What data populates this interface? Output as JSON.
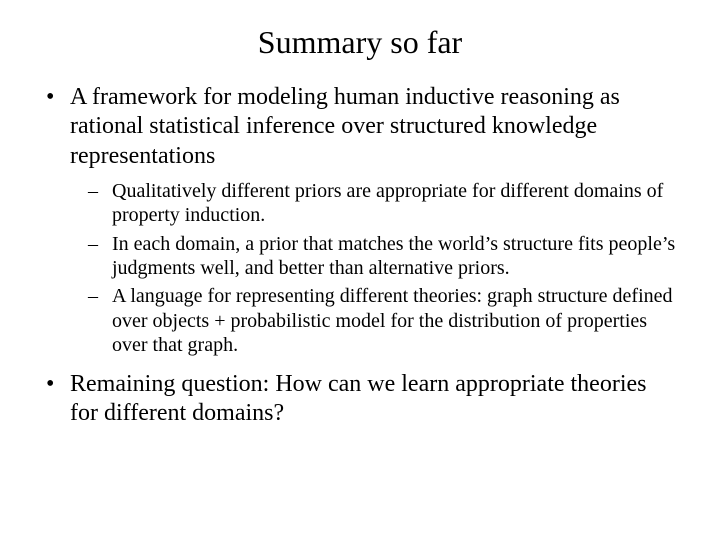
{
  "title": "Summary so far",
  "bullets": [
    {
      "text": "A framework for modeling human inductive reasoning as rational statistical inference over structured knowledge representations",
      "sub": [
        "Qualitatively different priors are appropriate for different domains of property induction.",
        "In each domain, a prior that matches the world’s structure fits people’s judgments well, and better than alternative priors.",
        "A language for representing different theories: graph structure defined over objects + probabilistic model for the distribution of properties over that graph."
      ]
    },
    {
      "text": "Remaining question:  How can we learn appropriate theories for different domains?",
      "sub": []
    }
  ],
  "style": {
    "background_color": "#ffffff",
    "text_color": "#000000",
    "font_family": "Times New Roman",
    "title_fontsize": 32,
    "level1_fontsize": 24,
    "level2_fontsize": 20,
    "level1_marker": "•",
    "level2_marker": "–"
  }
}
